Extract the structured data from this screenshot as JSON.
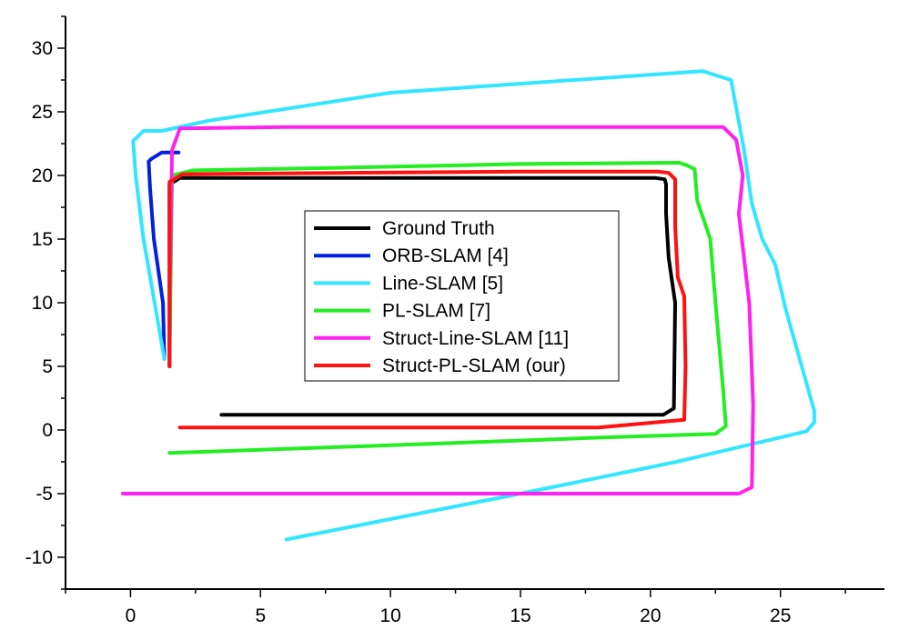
{
  "chart_data": {
    "type": "line",
    "title": "",
    "xlabel": "",
    "ylabel": "",
    "xlim": [
      -2.5,
      29
    ],
    "ylim": [
      -12.5,
      32.5
    ],
    "x_ticks": [
      0,
      5,
      10,
      15,
      20,
      25
    ],
    "y_ticks": [
      -10,
      -5,
      0,
      5,
      10,
      15,
      20,
      25,
      30
    ],
    "x_tick_labels": [
      "0",
      "5",
      "10",
      "15",
      "20",
      "25"
    ],
    "y_tick_labels": [
      "-10",
      "-5",
      "0",
      "5",
      "10",
      "15",
      "20",
      "25",
      "30"
    ],
    "grid": false,
    "legend_position": "center",
    "series": [
      {
        "name": "Ground Truth",
        "color": "#000000",
        "x": [
          3.5,
          8,
          12,
          16,
          20.5,
          20.9,
          20.95,
          20.7,
          20.6,
          20.6,
          20.55,
          20.2,
          19,
          12,
          5,
          1.9,
          1.5,
          1.5,
          1.5
        ],
        "y": [
          1.2,
          1.2,
          1.2,
          1.2,
          1.2,
          1.7,
          10,
          13.5,
          17,
          19.3,
          19.7,
          19.8,
          19.8,
          19.8,
          19.8,
          19.8,
          19.3,
          10,
          5
        ]
      },
      {
        "name": "ORB-SLAM [4]",
        "color": "#0022dd",
        "x": [
          1.3,
          1.25,
          0.9,
          0.75,
          0.7,
          0.8,
          1.2,
          1.85
        ],
        "y": [
          5.6,
          10,
          15,
          19,
          21.1,
          21.3,
          21.8,
          21.8
        ]
      },
      {
        "name": "Line-SLAM [5]",
        "color": "#33e6ff",
        "x": [
          6,
          15,
          21,
          26,
          26.3,
          26.3,
          25.2,
          24.8,
          24.3,
          23.9,
          23.6,
          23.1,
          22,
          10,
          3,
          1.2,
          0.5,
          0.1,
          0.2,
          0.5,
          1.3
        ],
        "y": [
          -8.6,
          -5,
          -2.5,
          -0.1,
          0.6,
          1.5,
          9.5,
          13,
          15,
          17.8,
          22,
          27.5,
          28.2,
          26.5,
          24.3,
          23.5,
          23.5,
          22.7,
          20,
          15,
          5.6
        ]
      },
      {
        "name": "PL-SLAM [7]",
        "color": "#22ee22",
        "x": [
          1.5,
          10,
          18,
          22.5,
          22.9,
          22.8,
          22.5,
          22.3,
          21.8,
          21.7,
          21.4,
          21.1,
          15,
          8,
          2.4,
          1.6,
          1.5
        ],
        "y": [
          -1.8,
          -1.2,
          -0.6,
          -0.3,
          0.3,
          3,
          10,
          15,
          18,
          20.5,
          20.8,
          21,
          20.9,
          20.6,
          20.4,
          20,
          5
        ]
      },
      {
        "name": "Struct-Line-SLAM [11]",
        "color": "#ff22ee",
        "x": [
          -0.3,
          10,
          20,
          23,
          23.4,
          23.9,
          23.95,
          23.8,
          23.6,
          23.4,
          23.55,
          23.3,
          22.8,
          15,
          6,
          1.9,
          1.6,
          1.5,
          1.5
        ],
        "y": [
          -5,
          -5,
          -5,
          -5,
          -5,
          -4.5,
          2,
          10,
          13.5,
          17,
          20,
          22.8,
          23.8,
          23.8,
          23.8,
          23.7,
          22,
          10,
          5
        ]
      },
      {
        "name": "Struct-PL-SLAM (our)",
        "color": "#ff1111",
        "x": [
          1.9,
          10,
          18,
          21.3,
          21.35,
          21.3,
          21.05,
          20.95,
          20.95,
          20.7,
          20.3,
          15,
          8,
          2,
          1.5,
          1.5,
          1.5
        ],
        "y": [
          0.2,
          0.2,
          0.2,
          0.8,
          5,
          10.5,
          12,
          16,
          19.7,
          20.2,
          20.3,
          20.3,
          20.2,
          20.1,
          19.5,
          10,
          5
        ]
      }
    ]
  }
}
